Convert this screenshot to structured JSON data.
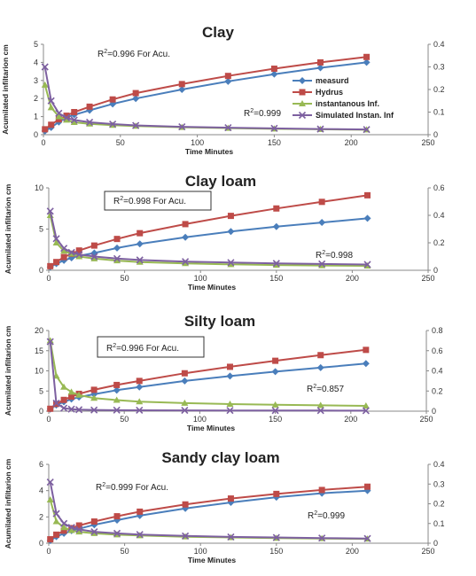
{
  "colors": {
    "measurd": "#4a7ebb",
    "hydrus": "#be4b48",
    "instant": "#98b954",
    "simulated": "#7d60a0",
    "axis": "#888888"
  },
  "chart_data": [
    {
      "type": "line",
      "title": "Clay",
      "xlabel": "Time  Minutes",
      "ylabel": "Acumilated infiltarion cm",
      "xlim": [
        0,
        250
      ],
      "xticks": [
        0,
        50,
        100,
        150,
        200,
        250
      ],
      "ylim": [
        0,
        5
      ],
      "yticks": [
        0,
        1,
        2,
        3,
        4,
        5
      ],
      "y2lim": [
        0,
        0.4
      ],
      "y2ticks": [
        "0",
        "0.1",
        "0.2",
        "0.3",
        "0.4"
      ],
      "y2tick_values": [
        0,
        0.1,
        0.2,
        0.3,
        0.4
      ],
      "legend": [
        "measurd",
        "Hydrus",
        "instantanous Inf.",
        "Simulated Instan. Inf"
      ],
      "annotations": [
        {
          "id": "r2-acu",
          "prefix": "R",
          "sup": "2",
          "text": "=0.996 For Acu.",
          "boxed": false
        },
        {
          "id": "r2-inst",
          "prefix": "R",
          "sup": "2",
          "text": "=0.999",
          "boxed": false
        }
      ],
      "x": [
        1,
        5,
        10,
        15,
        20,
        30,
        45,
        60,
        90,
        120,
        150,
        180,
        210
      ],
      "series": [
        {
          "name": "measurd",
          "axis": "left",
          "marker": "diamond",
          "color": "#4a7ebb",
          "values": [
            0.2,
            0.4,
            0.7,
            0.95,
            1.1,
            1.35,
            1.7,
            2.0,
            2.5,
            2.95,
            3.35,
            3.7,
            4.0
          ]
        },
        {
          "name": "Hydrus",
          "axis": "left",
          "marker": "square",
          "color": "#be4b48",
          "values": [
            0.3,
            0.55,
            0.85,
            1.05,
            1.25,
            1.55,
            1.95,
            2.3,
            2.8,
            3.25,
            3.65,
            4.0,
            4.3
          ]
        },
        {
          "name": "instantanous Inf.",
          "axis": "right",
          "marker": "triangle",
          "color": "#98b954",
          "values": [
            0.22,
            0.12,
            0.08,
            0.065,
            0.055,
            0.048,
            0.042,
            0.038,
            0.033,
            0.029,
            0.026,
            0.024,
            0.022
          ]
        },
        {
          "name": "Simulated Instan. Inf",
          "axis": "right",
          "marker": "x",
          "color": "#7d60a0",
          "values": [
            0.3,
            0.15,
            0.095,
            0.075,
            0.065,
            0.055,
            0.047,
            0.041,
            0.035,
            0.031,
            0.028,
            0.025,
            0.023
          ]
        }
      ]
    },
    {
      "type": "line",
      "title": "Clay loam",
      "xlabel": "Time  Minutes",
      "ylabel": "Acumilated infiltarion cm",
      "xlim": [
        0,
        250
      ],
      "xticks": [
        0,
        50,
        100,
        150,
        200,
        250
      ],
      "ylim": [
        0,
        10
      ],
      "yticks": [
        0,
        5,
        10
      ],
      "y2lim": [
        0,
        0.6
      ],
      "y2ticks": [
        "0",
        "0.2",
        "0.4",
        "0.6"
      ],
      "y2tick_values": [
        0,
        0.2,
        0.4,
        0.6
      ],
      "annotations": [
        {
          "id": "r2-acu",
          "prefix": "R",
          "sup": "2",
          "text": "=0.998 For Acu.",
          "boxed": true
        },
        {
          "id": "r2-inst",
          "prefix": "R",
          "sup": "2",
          "text": "=0.998",
          "boxed": false
        }
      ],
      "x": [
        1,
        5,
        10,
        15,
        20,
        30,
        45,
        60,
        90,
        120,
        150,
        180,
        210
      ],
      "series": [
        {
          "name": "measurd",
          "axis": "left",
          "marker": "diamond",
          "color": "#4a7ebb",
          "values": [
            0.4,
            0.8,
            1.2,
            1.5,
            1.75,
            2.1,
            2.7,
            3.2,
            4.0,
            4.7,
            5.3,
            5.8,
            6.3
          ]
        },
        {
          "name": "Hydrus",
          "axis": "left",
          "marker": "square",
          "color": "#be4b48",
          "values": [
            0.5,
            1.0,
            1.6,
            2.0,
            2.4,
            3.0,
            3.8,
            4.5,
            5.6,
            6.6,
            7.5,
            8.3,
            9.1
          ]
        },
        {
          "name": "instantanous Inf.",
          "axis": "right",
          "marker": "triangle",
          "color": "#98b954",
          "values": [
            0.4,
            0.2,
            0.14,
            0.12,
            0.1,
            0.085,
            0.07,
            0.06,
            0.05,
            0.043,
            0.038,
            0.035,
            0.032
          ]
        },
        {
          "name": "Simulated Instan. Inf",
          "axis": "right",
          "marker": "x",
          "color": "#7d60a0",
          "values": [
            0.43,
            0.23,
            0.16,
            0.13,
            0.115,
            0.1,
            0.085,
            0.075,
            0.063,
            0.056,
            0.05,
            0.046,
            0.042
          ]
        }
      ]
    },
    {
      "type": "line",
      "title": "Silty loam",
      "xlabel": "Time  Minutes",
      "ylabel": "Acumilated infiltarion cm",
      "xlim": [
        0,
        250
      ],
      "xticks": [
        0,
        50,
        100,
        150,
        200,
        250
      ],
      "ylim": [
        0,
        20
      ],
      "yticks": [
        0,
        5,
        10,
        15,
        20
      ],
      "y2lim": [
        0,
        0.8
      ],
      "y2ticks": [
        "0",
        "0.2",
        "0.4",
        "0.6",
        "0.8"
      ],
      "y2tick_values": [
        0,
        0.2,
        0.4,
        0.6,
        0.8
      ],
      "annotations": [
        {
          "id": "r2-acu",
          "prefix": "R",
          "sup": "2",
          "text": "=0.996 For Acu.",
          "boxed": true
        },
        {
          "id": "r2-inst",
          "prefix": "R",
          "sup": "2",
          "text": "=0.857",
          "boxed": false
        }
      ],
      "x": [
        1,
        5,
        10,
        15,
        20,
        30,
        45,
        60,
        90,
        120,
        150,
        180,
        210
      ],
      "series": [
        {
          "name": "measurd",
          "axis": "left",
          "marker": "diamond",
          "color": "#4a7ebb",
          "values": [
            0.5,
            1.5,
            2.3,
            3.0,
            3.5,
            4.2,
            5.2,
            6.0,
            7.5,
            8.7,
            9.8,
            10.8,
            11.8
          ]
        },
        {
          "name": "Hydrus",
          "axis": "left",
          "marker": "square",
          "color": "#be4b48",
          "values": [
            0.6,
            1.8,
            2.8,
            3.6,
            4.3,
            5.3,
            6.5,
            7.5,
            9.4,
            11.0,
            12.5,
            13.9,
            15.2
          ]
        },
        {
          "name": "instantanous Inf.",
          "axis": "right",
          "marker": "triangle",
          "color": "#98b954",
          "values": [
            0.7,
            0.35,
            0.24,
            0.19,
            0.16,
            0.13,
            0.11,
            0.095,
            0.08,
            0.07,
            0.063,
            0.058,
            0.053
          ]
        },
        {
          "name": "Simulated Instan. Inf",
          "axis": "right",
          "marker": "x",
          "color": "#7d60a0",
          "values": [
            0.69,
            0.08,
            0.03,
            0.02,
            0.015,
            0.012,
            0.01,
            0.009,
            0.008,
            0.007,
            0.006,
            0.006,
            0.005
          ]
        }
      ]
    },
    {
      "type": "line",
      "title": "Sandy clay loam",
      "xlabel": "Time  Minutes",
      "ylabel": "Acumilated infiltarion cm",
      "xlim": [
        0,
        250
      ],
      "xticks": [
        0,
        50,
        100,
        150,
        200,
        250
      ],
      "ylim": [
        0,
        6
      ],
      "yticks": [
        0,
        2,
        4,
        6
      ],
      "y2lim": [
        0,
        0.4
      ],
      "y2ticks": [
        "0",
        "0.1",
        "0.2",
        "0.3",
        "0.4"
      ],
      "y2tick_values": [
        0,
        0.1,
        0.2,
        0.3,
        0.4
      ],
      "annotations": [
        {
          "id": "r2-acu",
          "prefix": "R",
          "sup": "2",
          "text": "=0.999 For Acu.",
          "boxed": false
        },
        {
          "id": "r2-inst",
          "prefix": "R",
          "sup": "2",
          "text": "=0.999",
          "boxed": false
        }
      ],
      "x": [
        1,
        5,
        10,
        15,
        20,
        30,
        45,
        60,
        90,
        120,
        150,
        180,
        210
      ],
      "series": [
        {
          "name": "measurd",
          "axis": "left",
          "marker": "diamond",
          "color": "#4a7ebb",
          "values": [
            0.2,
            0.5,
            0.75,
            0.95,
            1.1,
            1.4,
            1.75,
            2.1,
            2.65,
            3.1,
            3.5,
            3.8,
            4.0
          ]
        },
        {
          "name": "Hydrus",
          "axis": "left",
          "marker": "square",
          "color": "#be4b48",
          "values": [
            0.3,
            0.65,
            0.95,
            1.15,
            1.35,
            1.65,
            2.05,
            2.4,
            2.95,
            3.4,
            3.75,
            4.05,
            4.3
          ]
        },
        {
          "name": "instantanous Inf.",
          "axis": "right",
          "marker": "triangle",
          "color": "#98b954",
          "values": [
            0.22,
            0.11,
            0.08,
            0.065,
            0.058,
            0.05,
            0.043,
            0.039,
            0.033,
            0.029,
            0.026,
            0.024,
            0.022
          ]
        },
        {
          "name": "Simulated Instan. Inf",
          "axis": "right",
          "marker": "x",
          "color": "#7d60a0",
          "values": [
            0.31,
            0.15,
            0.1,
            0.08,
            0.07,
            0.058,
            0.05,
            0.044,
            0.037,
            0.032,
            0.029,
            0.026,
            0.024
          ]
        }
      ]
    }
  ]
}
